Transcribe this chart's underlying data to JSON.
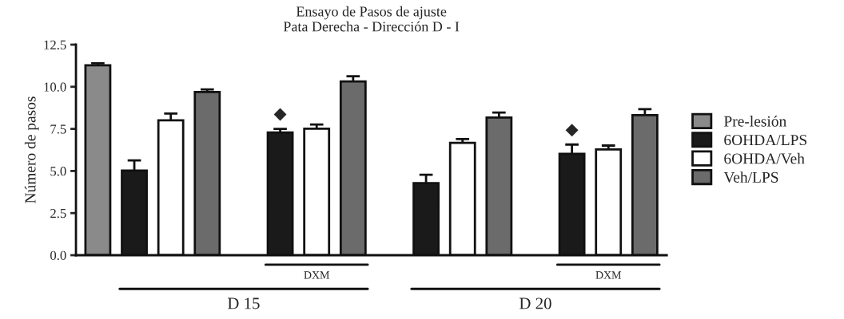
{
  "chart_data": {
    "type": "bar",
    "title": "Ensayo de Pasos de ajuste\nPata Derecha - Dirección D - I",
    "ylabel": "Número de pasos",
    "categories": [
      null,
      null,
      null,
      null,
      null,
      null,
      null,
      null,
      null,
      null,
      null,
      null,
      null,
      null,
      null,
      null
    ],
    "series": [
      {
        "name": "Pre-lesión",
        "color": "#8a8a8a",
        "values": [
          11.27,
          null,
          null,
          null,
          null,
          null,
          null,
          null,
          null,
          null,
          null,
          null,
          null,
          null,
          null,
          null
        ],
        "errors": [
          [
            11.27,
            11.39
          ],
          null,
          null,
          null,
          null,
          null,
          null,
          null,
          null,
          null,
          null,
          null,
          null,
          null,
          null,
          null
        ]
      },
      {
        "name": "6OHDA/LPS",
        "color": "#1a1a1a",
        "values": [
          null,
          5.03,
          null,
          null,
          null,
          7.29,
          null,
          null,
          null,
          4.28,
          null,
          null,
          null,
          6.02,
          null,
          null
        ],
        "errors": [
          null,
          [
            5.03,
            5.63
          ],
          null,
          null,
          null,
          [
            7.29,
            7.5
          ],
          null,
          null,
          null,
          [
            4.28,
            4.78
          ],
          null,
          null,
          null,
          [
            6.02,
            6.57
          ],
          null,
          null
        ],
        "value_labels": [
          null,
          null,
          null,
          null,
          null,
          "◆",
          null,
          null,
          null,
          null,
          null,
          null,
          null,
          "◆",
          null,
          null
        ]
      },
      {
        "name": "6OHDA/Veh",
        "color": "#ffffff",
        "values": [
          null,
          null,
          8.01,
          null,
          null,
          null,
          7.51,
          null,
          null,
          null,
          6.67,
          null,
          null,
          null,
          6.28,
          null
        ],
        "errors": [
          null,
          null,
          [
            8.01,
            8.41
          ],
          null,
          null,
          null,
          [
            7.51,
            7.76
          ],
          null,
          null,
          null,
          [
            6.67,
            6.9
          ],
          null,
          null,
          null,
          [
            6.28,
            6.51
          ],
          null
        ]
      },
      {
        "name": "Veh/LPS",
        "color": "#6b6b6b",
        "values": [
          null,
          null,
          null,
          9.69,
          null,
          null,
          null,
          10.32,
          null,
          null,
          null,
          8.17,
          null,
          null,
          null,
          8.32
        ],
        "errors": [
          null,
          null,
          null,
          [
            9.69,
            9.84
          ],
          null,
          null,
          null,
          [
            10.32,
            10.62
          ],
          null,
          null,
          null,
          [
            8.17,
            8.47
          ],
          null,
          null,
          null,
          [
            8.32,
            8.67
          ]
        ]
      }
    ],
    "annotations": [
      "DXM",
      "DXM",
      "D 15",
      "D 20"
    ],
    "ylim": [
      0,
      12.5
    ],
    "yticks": [
      {
        "value": 0,
        "label": "0.0"
      },
      {
        "value": 2.5,
        "label": "2.5"
      },
      {
        "value": 5,
        "label": "5.0"
      },
      {
        "value": 7.5,
        "label": "7.5"
      },
      {
        "value": 10,
        "label": "10.0"
      },
      {
        "value": 12.5,
        "label": "12.5"
      }
    ],
    "tick_labels": "y",
    "legend": "right",
    "grid": false
  }
}
